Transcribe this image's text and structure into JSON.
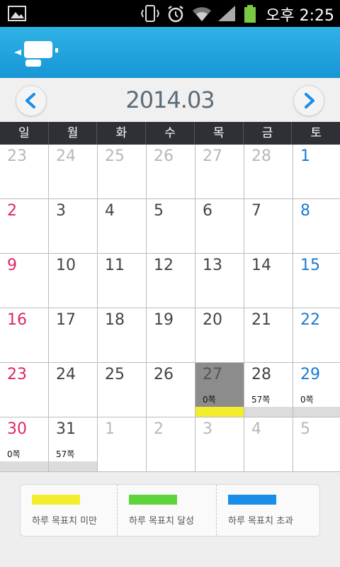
{
  "status_bar": {
    "time": "오후 2:25",
    "icons": [
      "image-icon",
      "vibrate-icon",
      "alarm-icon",
      "wifi-icon",
      "signal-icon",
      "battery-icon"
    ]
  },
  "app_bar": {
    "icon": "app-logo-icon"
  },
  "calendar": {
    "title": "2014.03",
    "prev_icon": "chevron-left-icon",
    "next_icon": "chevron-right-icon",
    "weekdays": [
      "일",
      "월",
      "화",
      "수",
      "목",
      "금",
      "토"
    ],
    "days": [
      {
        "day": "23",
        "tone": "gray"
      },
      {
        "day": "24",
        "tone": "gray"
      },
      {
        "day": "25",
        "tone": "gray"
      },
      {
        "day": "26",
        "tone": "gray"
      },
      {
        "day": "27",
        "tone": "gray"
      },
      {
        "day": "28",
        "tone": "gray"
      },
      {
        "day": "1",
        "tone": "blue"
      },
      {
        "day": "2",
        "tone": "red"
      },
      {
        "day": "3",
        "tone": "dark"
      },
      {
        "day": "4",
        "tone": "dark"
      },
      {
        "day": "5",
        "tone": "dark"
      },
      {
        "day": "6",
        "tone": "dark"
      },
      {
        "day": "7",
        "tone": "dark"
      },
      {
        "day": "8",
        "tone": "blue"
      },
      {
        "day": "9",
        "tone": "red"
      },
      {
        "day": "10",
        "tone": "dark"
      },
      {
        "day": "11",
        "tone": "dark"
      },
      {
        "day": "12",
        "tone": "dark"
      },
      {
        "day": "13",
        "tone": "dark"
      },
      {
        "day": "14",
        "tone": "dark"
      },
      {
        "day": "15",
        "tone": "blue"
      },
      {
        "day": "16",
        "tone": "red"
      },
      {
        "day": "17",
        "tone": "dark"
      },
      {
        "day": "18",
        "tone": "dark"
      },
      {
        "day": "19",
        "tone": "dark"
      },
      {
        "day": "20",
        "tone": "dark"
      },
      {
        "day": "21",
        "tone": "dark"
      },
      {
        "day": "22",
        "tone": "blue"
      },
      {
        "day": "23",
        "tone": "red"
      },
      {
        "day": "24",
        "tone": "dark"
      },
      {
        "day": "25",
        "tone": "dark"
      },
      {
        "day": "26",
        "tone": "dark"
      },
      {
        "day": "27",
        "tone": "today",
        "selected": true,
        "pages": "0쪽",
        "bar_color": "#f2ee2e"
      },
      {
        "day": "28",
        "tone": "dark",
        "pages": "57쪽",
        "bar_color": "#dcdcdc"
      },
      {
        "day": "29",
        "tone": "blue",
        "pages": "0쪽",
        "bar_color": "#dcdcdc"
      },
      {
        "day": "30",
        "tone": "red",
        "pages": "0쪽",
        "bar_color": "#dcdcdc"
      },
      {
        "day": "31",
        "tone": "dark",
        "pages": "57쪽",
        "bar_color": "#dcdcdc"
      },
      {
        "day": "1",
        "tone": "gray"
      },
      {
        "day": "2",
        "tone": "gray"
      },
      {
        "day": "3",
        "tone": "gray"
      },
      {
        "day": "4",
        "tone": "gray"
      },
      {
        "day": "5",
        "tone": "gray"
      }
    ]
  },
  "legend": [
    {
      "label": "하루 목표치 미만",
      "color": "#f2ee2e"
    },
    {
      "label": "하루 목표치 달성",
      "color": "#5fd43a"
    },
    {
      "label": "하루 목표치 초과",
      "color": "#1a8de8"
    }
  ]
}
